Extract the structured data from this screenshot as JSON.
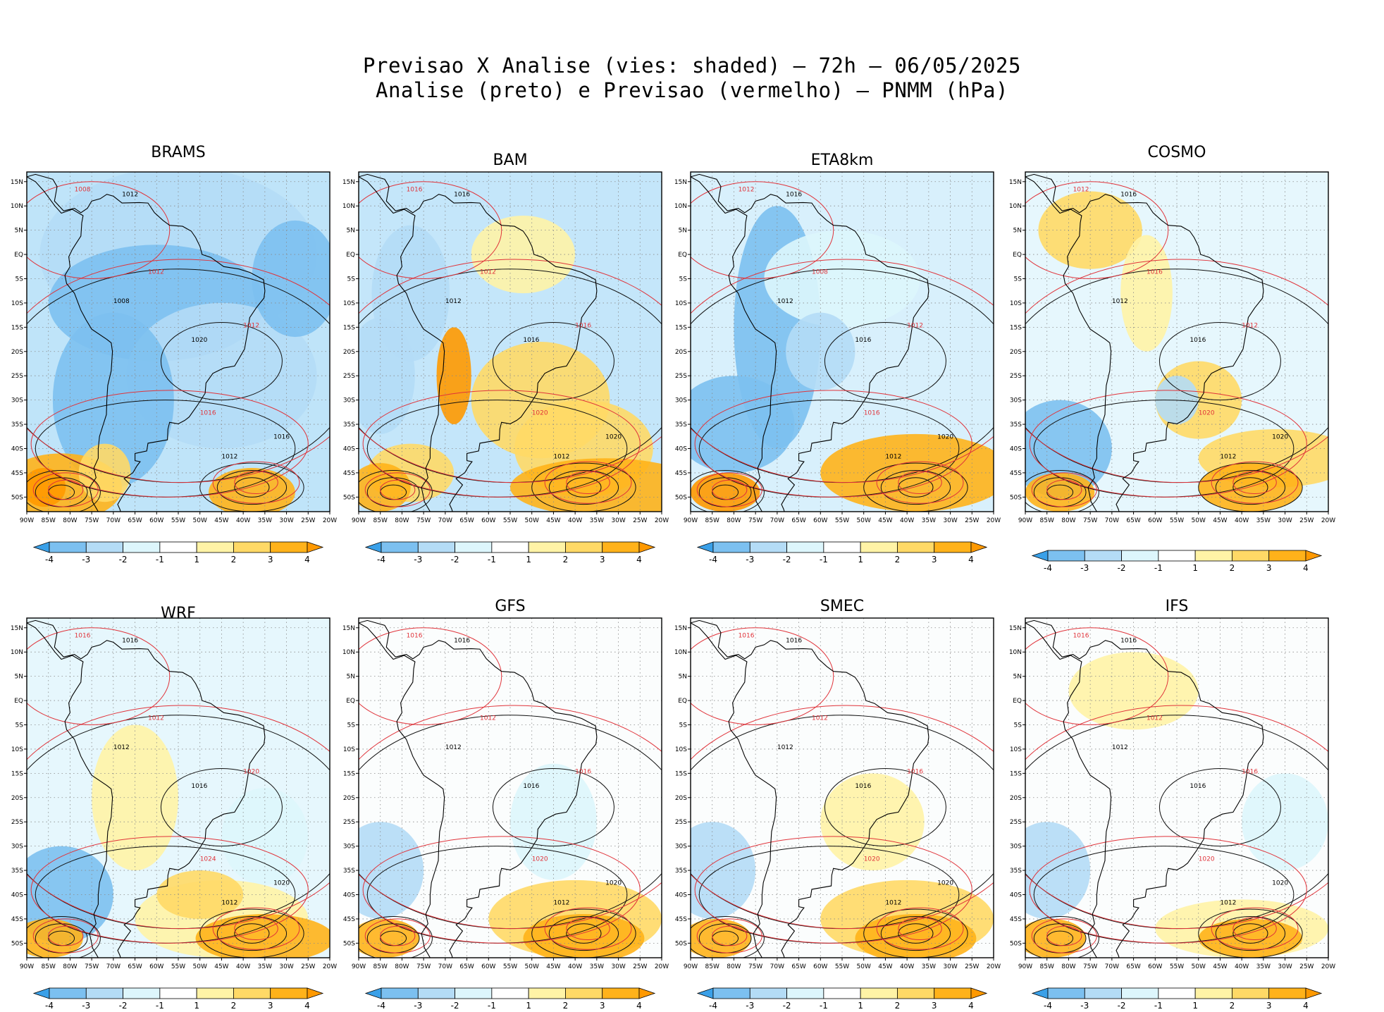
{
  "header": {
    "line1": "Previsao X Analise (vies: shaded) – 72h – 06/05/2025",
    "line2": "Analise (preto) e Previsao (vermelho) – PNMM (hPa)"
  },
  "axes": {
    "lat_labels": [
      "15N",
      "10N",
      "5N",
      "EQ",
      "5S",
      "10S",
      "15S",
      "20S",
      "25S",
      "30S",
      "35S",
      "40S",
      "45S",
      "50S"
    ],
    "lon_labels": [
      "90W",
      "85W",
      "80W",
      "75W",
      "70W",
      "65W",
      "60W",
      "55W",
      "50W",
      "45W",
      "40W",
      "35W",
      "30W",
      "25W",
      "20W"
    ]
  },
  "colorbar": {
    "labels": [
      "-4",
      "-3",
      "-2",
      "-1",
      "1",
      "2",
      "3",
      "4"
    ],
    "colors": [
      "#3aa0e8",
      "#7cc0f0",
      "#b4dcf6",
      "#ddf6fc",
      "#ffffff",
      "#fff3a6",
      "#ffd966",
      "#ffb21a",
      "#ff9900"
    ]
  },
  "panels": [
    {
      "name": "BRAMS",
      "analysis_labels": [
        "1012",
        "1008",
        "1016",
        "1020",
        "1012"
      ],
      "forecast_labels": [
        "1008",
        "1012",
        "1016",
        "1012"
      ]
    },
    {
      "name": "BAM",
      "analysis_labels": [
        "1016",
        "1012",
        "1020",
        "1016",
        "1012"
      ],
      "forecast_labels": [
        "1016",
        "1012",
        "1020",
        "1016"
      ]
    },
    {
      "name": "ETA8km",
      "analysis_labels": [
        "1016",
        "1012",
        "1020",
        "1016",
        "1012"
      ],
      "forecast_labels": [
        "1012",
        "1008",
        "1016",
        "1012"
      ]
    },
    {
      "name": "COSMO",
      "analysis_labels": [
        "1016",
        "1012",
        "1020",
        "1016",
        "1012"
      ],
      "forecast_labels": [
        "1012",
        "1016",
        "1020",
        "1012"
      ]
    },
    {
      "name": "WRF",
      "analysis_labels": [
        "1016",
        "1012",
        "1020",
        "1016",
        "1012"
      ],
      "forecast_labels": [
        "1016",
        "1012",
        "1024",
        "1020"
      ]
    },
    {
      "name": "GFS",
      "analysis_labels": [
        "1016",
        "1012",
        "1020",
        "1016",
        "1012"
      ],
      "forecast_labels": [
        "1016",
        "1012",
        "1020",
        "1016"
      ]
    },
    {
      "name": "SMEC",
      "analysis_labels": [
        "1016",
        "1012",
        "1020",
        "1016",
        "1012"
      ],
      "forecast_labels": [
        "1016",
        "1012",
        "1020",
        "1016"
      ]
    },
    {
      "name": "IFS",
      "analysis_labels": [
        "1016",
        "1012",
        "1020",
        "1016",
        "1012"
      ],
      "forecast_labels": [
        "1016",
        "1012",
        "1020",
        "1016"
      ]
    }
  ]
}
